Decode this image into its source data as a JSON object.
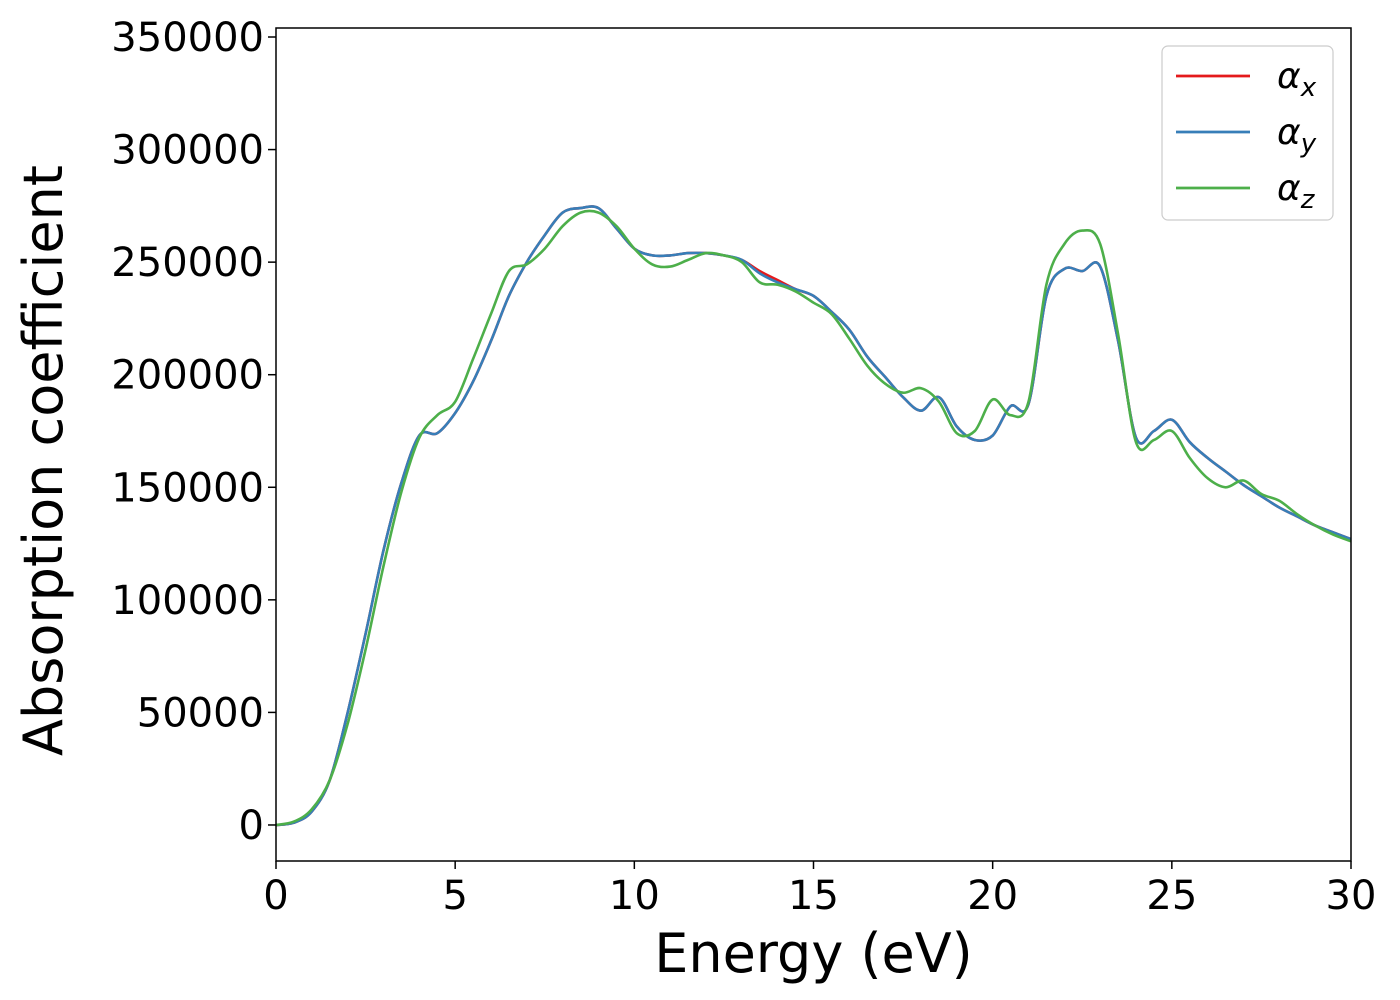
{
  "chart_data": {
    "type": "line",
    "title": "",
    "xlabel": "Energy (eV)",
    "ylabel": "Absorption coefficient",
    "xlim": [
      0,
      30
    ],
    "ylim": [
      -16000,
      354000
    ],
    "xticks": [
      0,
      5,
      10,
      15,
      20,
      25,
      30
    ],
    "yticks": [
      0,
      50000,
      100000,
      150000,
      200000,
      250000,
      300000,
      350000
    ],
    "grid": false,
    "legend_position": "top-right",
    "series": [
      {
        "name": "α_x",
        "legend_base": "α",
        "legend_sub": "x",
        "color": "#e41a1c",
        "x": [
          0,
          0.5,
          1,
          1.5,
          2,
          2.5,
          3,
          3.5,
          4,
          4.5,
          5,
          5.5,
          6,
          6.5,
          7,
          7.5,
          8,
          8.5,
          9,
          9.5,
          10,
          10.5,
          11,
          11.5,
          12,
          12.5,
          13,
          13.5,
          14,
          14.5,
          15,
          15.5,
          16,
          16.5,
          17,
          17.5,
          18,
          18.5,
          19,
          19.5,
          20,
          20.5,
          21,
          21.5,
          22,
          22.5,
          23,
          23.5,
          24,
          24.5,
          25,
          25.5,
          26,
          26.5,
          27,
          27.5,
          28,
          28.5,
          29,
          29.5,
          30
        ],
        "y": [
          0,
          1000,
          6000,
          20000,
          50000,
          85000,
          122000,
          152000,
          173000,
          174000,
          183000,
          197000,
          215000,
          235000,
          250000,
          262000,
          272000,
          274000,
          274000,
          265000,
          256000,
          253000,
          253000,
          254000,
          254000,
          253000,
          251000,
          246000,
          242000,
          238000,
          235000,
          228000,
          220000,
          208000,
          199000,
          190000,
          184000,
          190000,
          177000,
          171000,
          173000,
          186000,
          187000,
          235000,
          247000,
          246000,
          248000,
          215000,
          172000,
          175000,
          180000,
          170000,
          163000,
          157000,
          151000,
          146000,
          141000,
          137000,
          133000,
          130000,
          127000
        ]
      },
      {
        "name": "α_y",
        "legend_base": "α",
        "legend_sub": "y",
        "color": "#377eb8",
        "x": [
          0,
          0.5,
          1,
          1.5,
          2,
          2.5,
          3,
          3.5,
          4,
          4.5,
          5,
          5.5,
          6,
          6.5,
          7,
          7.5,
          8,
          8.5,
          9,
          9.5,
          10,
          10.5,
          11,
          11.5,
          12,
          12.5,
          13,
          13.5,
          14,
          14.5,
          15,
          15.5,
          16,
          16.5,
          17,
          17.5,
          18,
          18.5,
          19,
          19.5,
          20,
          20.5,
          21,
          21.5,
          22,
          22.5,
          23,
          23.5,
          24,
          24.5,
          25,
          25.5,
          26,
          26.5,
          27,
          27.5,
          28,
          28.5,
          29,
          29.5,
          30
        ],
        "y": [
          0,
          1000,
          6000,
          20000,
          50000,
          85000,
          122000,
          152000,
          173000,
          174000,
          183000,
          197000,
          215000,
          235000,
          250000,
          262000,
          272000,
          274000,
          274000,
          265000,
          256000,
          253000,
          253000,
          254000,
          254000,
          253000,
          251000,
          245000,
          241000,
          238000,
          235000,
          228000,
          220000,
          208000,
          199000,
          190000,
          184000,
          190000,
          177000,
          171000,
          173000,
          186000,
          187000,
          235000,
          247000,
          246000,
          248000,
          215000,
          172000,
          175000,
          180000,
          170000,
          163000,
          157000,
          151000,
          146000,
          141000,
          137000,
          133000,
          130000,
          127000
        ]
      },
      {
        "name": "α_z",
        "legend_base": "α",
        "legend_sub": "z",
        "color": "#4daf4a",
        "x": [
          0,
          0.5,
          1,
          1.5,
          2,
          2.5,
          3,
          3.5,
          4,
          4.5,
          5,
          5.5,
          6,
          6.5,
          7,
          7.5,
          8,
          8.5,
          9,
          9.5,
          10,
          10.5,
          11,
          11.5,
          12,
          12.5,
          13,
          13.5,
          14,
          14.5,
          15,
          15.5,
          16,
          16.5,
          17,
          17.5,
          18,
          18.5,
          19,
          19.5,
          20,
          20.5,
          21,
          21.5,
          22,
          22.5,
          23,
          23.5,
          24,
          24.5,
          25,
          25.5,
          26,
          26.5,
          27,
          27.5,
          28,
          28.5,
          29,
          29.5,
          30
        ],
        "y": [
          0,
          1500,
          7000,
          20000,
          45000,
          78000,
          115000,
          148000,
          172000,
          182000,
          188000,
          207000,
          227000,
          246000,
          249000,
          256000,
          266000,
          272000,
          272000,
          266000,
          256000,
          249000,
          248000,
          251000,
          254000,
          253000,
          250000,
          241000,
          240000,
          237000,
          232000,
          227000,
          216000,
          204000,
          196000,
          192000,
          194000,
          188000,
          174000,
          175000,
          189000,
          182000,
          188000,
          240000,
          258000,
          264000,
          258000,
          218000,
          170000,
          171000,
          175000,
          163000,
          154000,
          150000,
          153000,
          147000,
          144000,
          138000,
          133000,
          129000,
          126000
        ]
      }
    ]
  }
}
